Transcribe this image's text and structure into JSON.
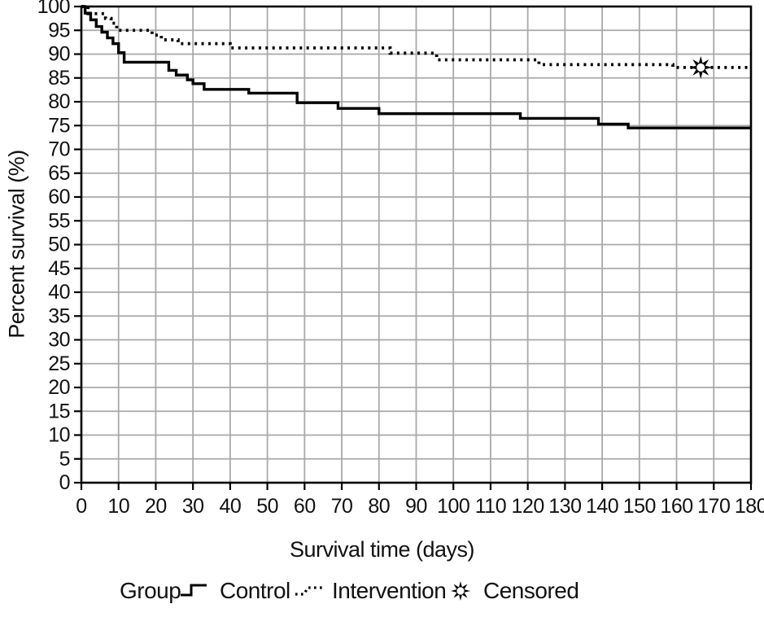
{
  "colors": {
    "curve": "#000000",
    "grid": "#a9a9a9",
    "axis": "#000000",
    "text": "#111111",
    "background": "#ffffff"
  },
  "legend": {
    "group_label": "Group",
    "items": [
      {
        "label": "Control",
        "style": "solid-step-line"
      },
      {
        "label": "Intervention",
        "style": "dotted-step-line"
      },
      {
        "label": "Censored",
        "style": "eight-point-star"
      }
    ]
  },
  "chart_data": {
    "type": "line",
    "subtype": "kaplan-meier-step-function",
    "title": "",
    "xlabel": "Survival time (days)",
    "ylabel": "Percent survival (%)",
    "xlim": [
      0,
      180
    ],
    "ylim": [
      0,
      100
    ],
    "x_tick_step": 10,
    "y_tick_step": 5,
    "grid": true,
    "legend_position": "bottom",
    "series": [
      {
        "name": "Control",
        "line": "solid",
        "points": [
          [
            0,
            100
          ],
          [
            1,
            98.6
          ],
          [
            2.5,
            97.2
          ],
          [
            4,
            95.8
          ],
          [
            5.5,
            94.6
          ],
          [
            7,
            93.4
          ],
          [
            8.5,
            92.2
          ],
          [
            10,
            90.3
          ],
          [
            11.5,
            88.3
          ],
          [
            23.5,
            86.6
          ],
          [
            25.5,
            85.6
          ],
          [
            28.5,
            84.6
          ],
          [
            30,
            83.8
          ],
          [
            33,
            82.6
          ],
          [
            45,
            81.8
          ],
          [
            58,
            79.8
          ],
          [
            69,
            78.6
          ],
          [
            80,
            77.5
          ],
          [
            118,
            76.5
          ],
          [
            139,
            75.3
          ],
          [
            147,
            74.5
          ]
        ],
        "end_x": 180,
        "final_value": 74.5
      },
      {
        "name": "Intervention",
        "line": "dotted",
        "points": [
          [
            0,
            100
          ],
          [
            1.8,
            98.5
          ],
          [
            6.5,
            97.5
          ],
          [
            8,
            96.5
          ],
          [
            9.5,
            95
          ],
          [
            19,
            94
          ],
          [
            21.5,
            93
          ],
          [
            26,
            92.2
          ],
          [
            40,
            91.3
          ],
          [
            83,
            90.2
          ],
          [
            95.5,
            88.8
          ],
          [
            123,
            87.8
          ],
          [
            159,
            87.2
          ]
        ],
        "end_x": 180,
        "final_value": 87.2
      }
    ],
    "censored_points": [
      {
        "series": "Intervention",
        "x": 166.5,
        "y": 87.2,
        "marker": "eight-point-star"
      }
    ]
  }
}
